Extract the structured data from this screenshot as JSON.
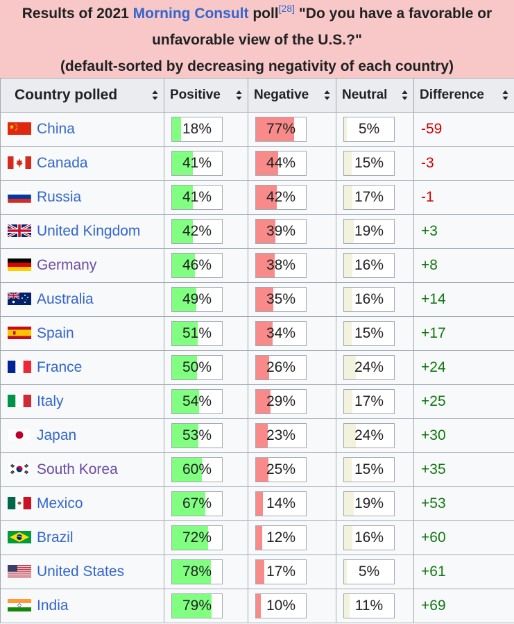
{
  "caption": {
    "prefix": "Results of 2021 ",
    "link": "Morning Consult",
    "poll_word": " poll",
    "ref": "[28]",
    "question": " \"Do you have a favorable or unfavorable view of the U.S.?\"",
    "note": "(default-sorted by decreasing negativity of each country)"
  },
  "headers": [
    "Country polled",
    "Positive",
    "Negative",
    "Neutral",
    "Difference"
  ],
  "rows": [
    {
      "country": "China",
      "flag": "china-flag-icon",
      "positive": 18,
      "negative": 77,
      "neutral": 5,
      "difference": "-59",
      "visited": false
    },
    {
      "country": "Canada",
      "flag": "canada-flag-icon",
      "positive": 41,
      "negative": 44,
      "neutral": 15,
      "difference": "-3",
      "visited": false
    },
    {
      "country": "Russia",
      "flag": "russia-flag-icon",
      "positive": 41,
      "negative": 42,
      "neutral": 17,
      "difference": "-1",
      "visited": false
    },
    {
      "country": "United Kingdom",
      "flag": "uk-flag-icon",
      "positive": 42,
      "negative": 39,
      "neutral": 19,
      "difference": "+3",
      "visited": false
    },
    {
      "country": "Germany",
      "flag": "germany-flag-icon",
      "positive": 46,
      "negative": 38,
      "neutral": 16,
      "difference": "+8",
      "visited": true
    },
    {
      "country": "Australia",
      "flag": "australia-flag-icon",
      "positive": 49,
      "negative": 35,
      "neutral": 16,
      "difference": "+14",
      "visited": false
    },
    {
      "country": "Spain",
      "flag": "spain-flag-icon",
      "positive": 51,
      "negative": 34,
      "neutral": 15,
      "difference": "+17",
      "visited": false
    },
    {
      "country": "France",
      "flag": "france-flag-icon",
      "positive": 50,
      "negative": 26,
      "neutral": 24,
      "difference": "+24",
      "visited": false
    },
    {
      "country": "Italy",
      "flag": "italy-flag-icon",
      "positive": 54,
      "negative": 29,
      "neutral": 17,
      "difference": "+25",
      "visited": false
    },
    {
      "country": "Japan",
      "flag": "japan-flag-icon",
      "positive": 53,
      "negative": 23,
      "neutral": 24,
      "difference": "+30",
      "visited": false
    },
    {
      "country": "South Korea",
      "flag": "south-korea-flag-icon",
      "positive": 60,
      "negative": 25,
      "neutral": 15,
      "difference": "+35",
      "visited": true
    },
    {
      "country": "Mexico",
      "flag": "mexico-flag-icon",
      "positive": 67,
      "negative": 14,
      "neutral": 19,
      "difference": "+53",
      "visited": false
    },
    {
      "country": "Brazil",
      "flag": "brazil-flag-icon",
      "positive": 72,
      "negative": 12,
      "neutral": 16,
      "difference": "+60",
      "visited": false
    },
    {
      "country": "United States",
      "flag": "usa-flag-icon",
      "positive": 78,
      "negative": 17,
      "neutral": 5,
      "difference": "+61",
      "visited": false
    },
    {
      "country": "India",
      "flag": "india-flag-icon",
      "positive": 79,
      "negative": 10,
      "neutral": 11,
      "difference": "+69",
      "visited": false
    }
  ],
  "colors": {
    "caption_bg": "#f8c8c8",
    "link": "#3366cc",
    "visited_link": "#6b4ba1",
    "positive_bar": "#80ff80",
    "negative_bar": "#f88a8a",
    "neutral_bar": "#f3f2dc",
    "negative_diff": "#cc0000",
    "positive_diff": "#117711"
  }
}
